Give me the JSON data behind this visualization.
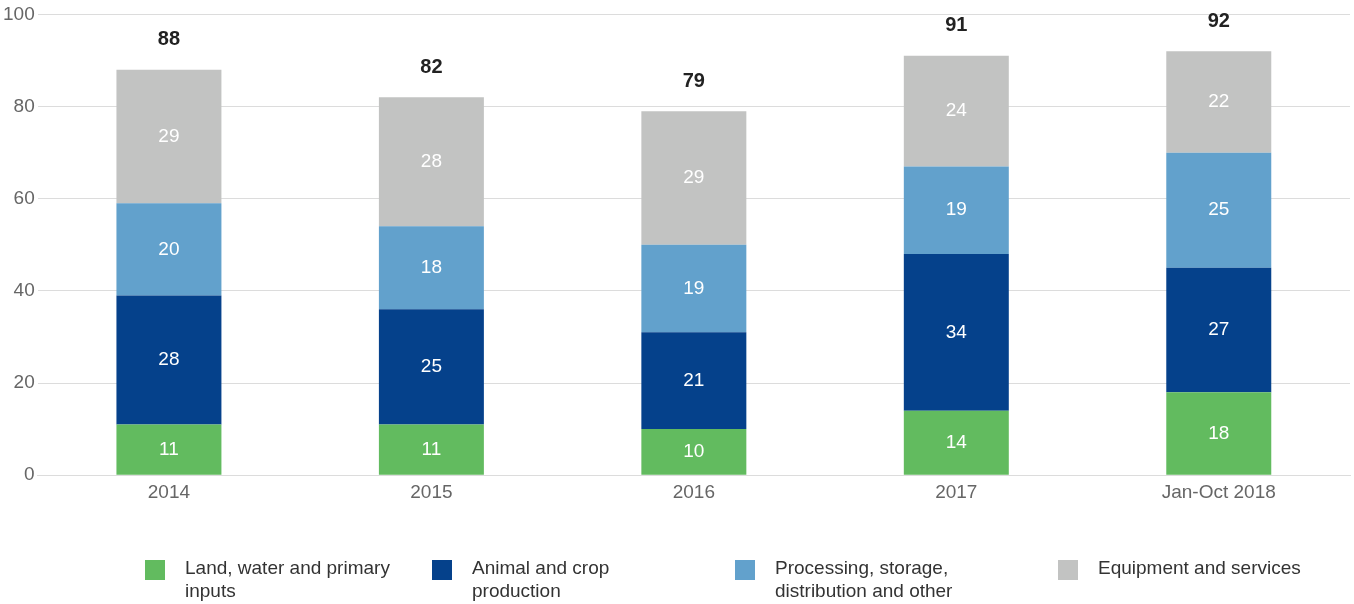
{
  "chart_data": {
    "type": "bar",
    "stacked": true,
    "categories": [
      "2014",
      "2015",
      "2016",
      "2017",
      "Jan-Oct 2018"
    ],
    "series": [
      {
        "name": "Land, water and primary inputs",
        "color": "#62bb5f",
        "values": [
          11,
          11,
          10,
          14,
          18
        ]
      },
      {
        "name": "Animal and crop production",
        "color": "#05418b",
        "values": [
          28,
          25,
          21,
          34,
          27
        ]
      },
      {
        "name": "Processing, storage, distribution and other",
        "color": "#62a1cc",
        "values": [
          20,
          18,
          19,
          19,
          25
        ]
      },
      {
        "name": "Equipment and services",
        "color": "#c2c3c2",
        "values": [
          29,
          28,
          29,
          24,
          22
        ]
      }
    ],
    "totals": [
      "88",
      "82",
      "79",
      "91",
      "92"
    ],
    "ylim": [
      0,
      100
    ],
    "yticks": [
      0,
      20,
      40,
      60,
      80,
      100
    ],
    "grid": "y",
    "legend": "bottom",
    "data_labels": true
  }
}
